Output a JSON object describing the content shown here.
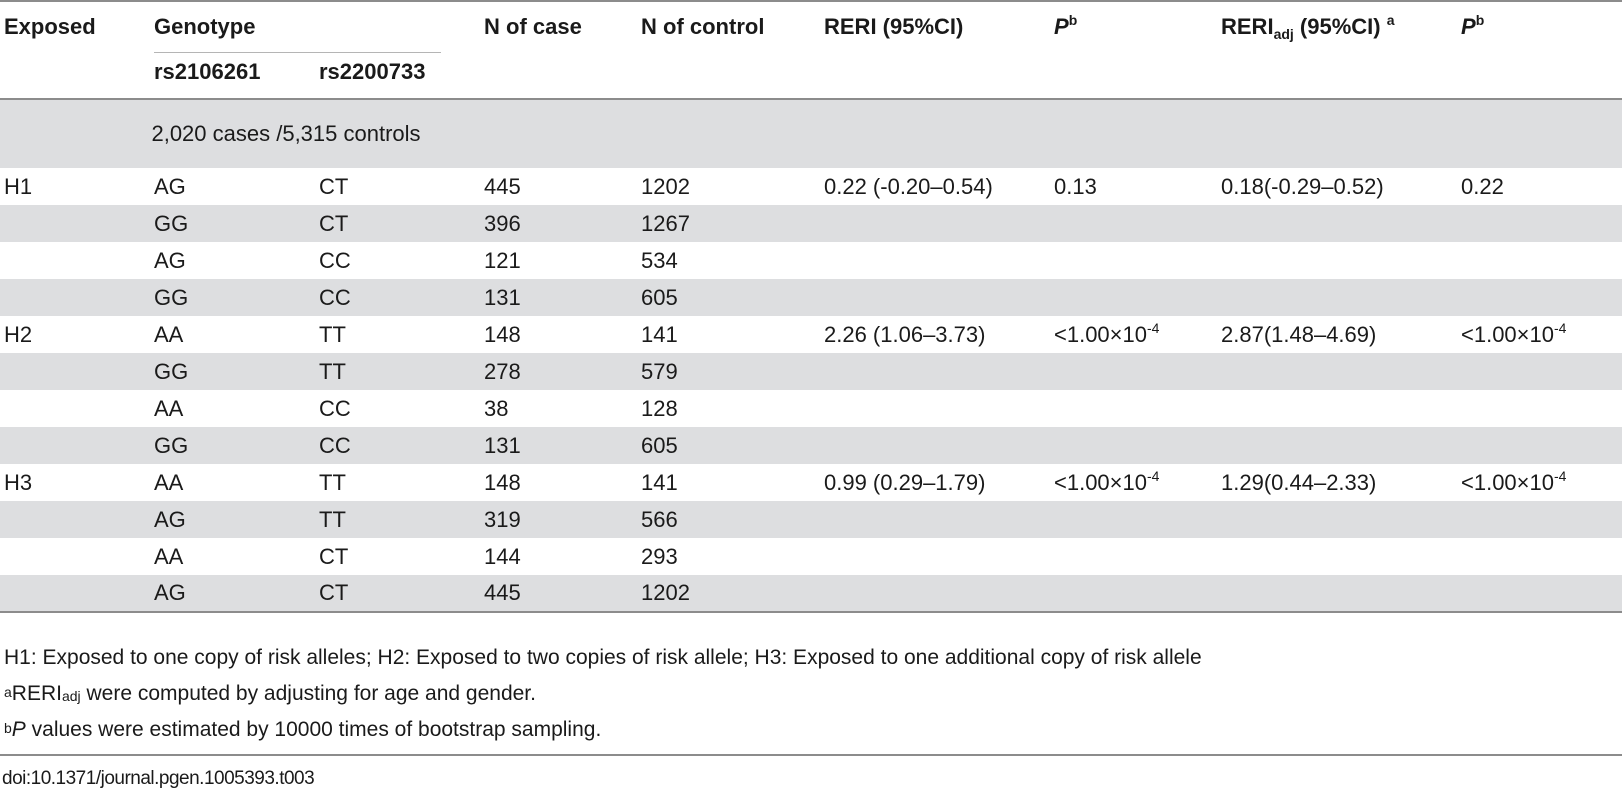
{
  "table": {
    "headers": {
      "exposed": "Exposed",
      "genotype": "Genotype",
      "snp1": "rs2106261",
      "snp2": "rs2200733",
      "n_case": "N of case",
      "n_control": "N of control",
      "reri": "RERI (95%CI)",
      "p_letter": "P",
      "p_sup": "b",
      "reri_adj_main": "RERI",
      "reri_adj_sub": "adj",
      "reri_adj_tail": " (95%CI) ",
      "reri_adj_sup": "a",
      "p2_letter": "P",
      "p2_sup": "b"
    },
    "subheader": "2,020 cases /5,315 controls",
    "rows": [
      {
        "exposed": "H1",
        "snp1": "AG",
        "snp2": "CT",
        "n_case": "445",
        "n_control": "1202",
        "reri": "0.22 (-0.20–0.54)",
        "p_base": "0.13",
        "p_exp": "",
        "reri_adj": "0.18(-0.29–0.52)",
        "p2_base": "0.22",
        "p2_exp": ""
      },
      {
        "exposed": "",
        "snp1": "GG",
        "snp2": "CT",
        "n_case": "396",
        "n_control": "1267",
        "reri": "",
        "p_base": "",
        "p_exp": "",
        "reri_adj": "",
        "p2_base": "",
        "p2_exp": ""
      },
      {
        "exposed": "",
        "snp1": "AG",
        "snp2": "CC",
        "n_case": "121",
        "n_control": "534",
        "reri": "",
        "p_base": "",
        "p_exp": "",
        "reri_adj": "",
        "p2_base": "",
        "p2_exp": ""
      },
      {
        "exposed": "",
        "snp1": "GG",
        "snp2": "CC",
        "n_case": "131",
        "n_control": "605",
        "reri": "",
        "p_base": "",
        "p_exp": "",
        "reri_adj": "",
        "p2_base": "",
        "p2_exp": ""
      },
      {
        "exposed": "H2",
        "snp1": "AA",
        "snp2": "TT",
        "n_case": "148",
        "n_control": "141",
        "reri": "2.26 (1.06–3.73)",
        "p_base": "<1.00×10",
        "p_exp": "-4",
        "reri_adj": "2.87(1.48–4.69)",
        "p2_base": "<1.00×10",
        "p2_exp": "-4"
      },
      {
        "exposed": "",
        "snp1": "GG",
        "snp2": "TT",
        "n_case": "278",
        "n_control": "579",
        "reri": "",
        "p_base": "",
        "p_exp": "",
        "reri_adj": "",
        "p2_base": "",
        "p2_exp": ""
      },
      {
        "exposed": "",
        "snp1": "AA",
        "snp2": "CC",
        "n_case": "38",
        "n_control": "128",
        "reri": "",
        "p_base": "",
        "p_exp": "",
        "reri_adj": "",
        "p2_base": "",
        "p2_exp": ""
      },
      {
        "exposed": "",
        "snp1": "GG",
        "snp2": "CC",
        "n_case": "131",
        "n_control": "605",
        "reri": "",
        "p_base": "",
        "p_exp": "",
        "reri_adj": "",
        "p2_base": "",
        "p2_exp": ""
      },
      {
        "exposed": "H3",
        "snp1": "AA",
        "snp2": "TT",
        "n_case": "148",
        "n_control": "141",
        "reri": "0.99 (0.29–1.79)",
        "p_base": "<1.00×10",
        "p_exp": "-4",
        "reri_adj": "1.29(0.44–2.33)",
        "p2_base": "<1.00×10",
        "p2_exp": "-4"
      },
      {
        "exposed": "",
        "snp1": "AG",
        "snp2": "TT",
        "n_case": "319",
        "n_control": "566",
        "reri": "",
        "p_base": "",
        "p_exp": "",
        "reri_adj": "",
        "p2_base": "",
        "p2_exp": ""
      },
      {
        "exposed": "",
        "snp1": "AA",
        "snp2": "CT",
        "n_case": "144",
        "n_control": "293",
        "reri": "",
        "p_base": "",
        "p_exp": "",
        "reri_adj": "",
        "p2_base": "",
        "p2_exp": ""
      },
      {
        "exposed": "",
        "snp1": "AG",
        "snp2": "CT",
        "n_case": "445",
        "n_control": "1202",
        "reri": "",
        "p_base": "",
        "p_exp": "",
        "reri_adj": "",
        "p2_base": "",
        "p2_exp": ""
      }
    ]
  },
  "footnotes": {
    "note1": "H1: Exposed to one copy of risk alleles; H2: Exposed to two copies of risk allele; H3: Exposed to one additional copy of risk allele",
    "note2_sup": "a",
    "note2_main": "RERI",
    "note2_sub": "adj",
    "note2_tail": " were computed by adjusting for age and gender.",
    "note3_sup": "b",
    "note3_ital": "P",
    "note3_tail": " values were estimated by 10000 times of bootstrap sampling."
  },
  "doi": "doi:10.1371/journal.pgen.1005393.t003"
}
